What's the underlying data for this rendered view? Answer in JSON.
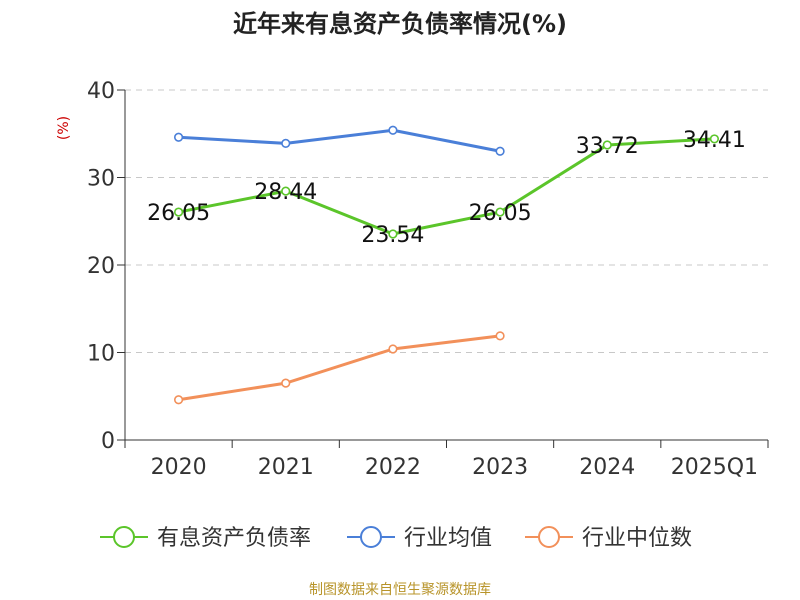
{
  "chart_data": {
    "type": "line",
    "title": "近年来有息资产负债率情况(%)",
    "ylabel": "(%)",
    "xlabel": "",
    "ylim": [
      0,
      40
    ],
    "yticks": [
      0,
      10,
      20,
      30,
      40
    ],
    "categories": [
      "2020",
      "2021",
      "2022",
      "2023",
      "2024",
      "2025Q1"
    ],
    "series": [
      {
        "name": "有息资产负债率",
        "color": "#5bc52a",
        "values": [
          26.05,
          28.44,
          23.54,
          26.05,
          33.72,
          34.41
        ],
        "labels": [
          "26.05",
          "28.44",
          "23.54",
          "26.05",
          "33.72",
          "34.41"
        ]
      },
      {
        "name": "行业均值",
        "color": "#4a7fd8",
        "values": [
          34.6,
          33.9,
          35.4,
          33.0,
          null,
          null
        ]
      },
      {
        "name": "行业中位数",
        "color": "#f2905a",
        "values": [
          4.6,
          6.5,
          10.4,
          11.9,
          null,
          null
        ]
      }
    ],
    "grid": true,
    "legend_position": "bottom"
  },
  "source": "制图数据来自恒生聚源数据库"
}
